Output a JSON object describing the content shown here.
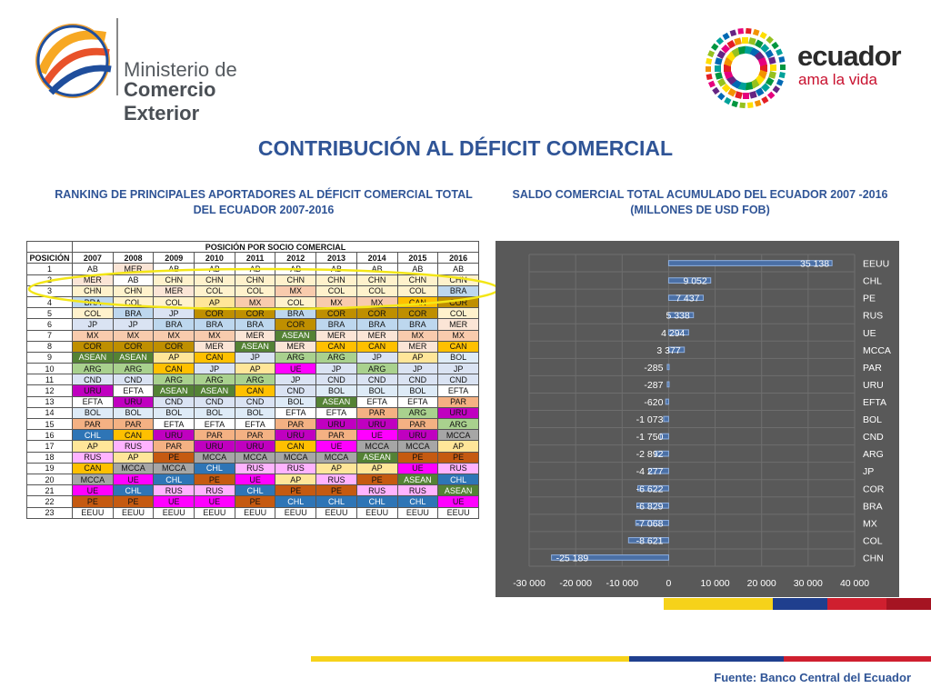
{
  "logos": {
    "left": {
      "line1": "Ministerio de",
      "line2": "Comercio Exterior"
    },
    "right": {
      "word": "ecuador",
      "tagline": "ama la vida"
    }
  },
  "title": "CONTRIBUCIÓN AL DÉFICIT COMERCIAL",
  "left_subtitle": "RANKING DE PRINCIPALES APORTADORES AL DÉFICIT COMERCIAL TOTAL DEL ECUADOR 2007-2016",
  "right_subtitle": "SALDO COMERCIAL TOTAL ACUMULADO DEL ECUADOR 2007 -2016 (MILLONES DE USD FOB)",
  "source": "Fuente: Banco Central del Ecuador",
  "table": {
    "caption": "POSICIÓN POR SOCIO COMERCIAL",
    "position_header": "POSICIÓN",
    "years": [
      "2007",
      "2008",
      "2009",
      "2010",
      "2011",
      "2012",
      "2013",
      "2014",
      "2015",
      "2016"
    ],
    "rows": [
      [
        "AB",
        "MER",
        "AB",
        "AB",
        "AB",
        "AB",
        "AB",
        "AB",
        "AB",
        "AB"
      ],
      [
        "MER",
        "AB",
        "CHN",
        "CHN",
        "CHN",
        "CHN",
        "CHN",
        "CHN",
        "CHN",
        "CHN"
      ],
      [
        "CHN",
        "CHN",
        "MER",
        "COL",
        "COL",
        "MX",
        "COL",
        "COL",
        "COL",
        "BRA"
      ],
      [
        "BRA",
        "COL",
        "COL",
        "AP",
        "MX",
        "COL",
        "MX",
        "MX",
        "CAN",
        "COR"
      ],
      [
        "COL",
        "BRA",
        "JP",
        "COR",
        "COR",
        "BRA",
        "COR",
        "COR",
        "COR",
        "COL"
      ],
      [
        "JP",
        "JP",
        "BRA",
        "BRA",
        "BRA",
        "COR",
        "BRA",
        "BRA",
        "BRA",
        "MER"
      ],
      [
        "MX",
        "MX",
        "MX",
        "MX",
        "MER",
        "ASEAN",
        "MER",
        "MER",
        "MX",
        "MX"
      ],
      [
        "COR",
        "COR",
        "COR",
        "MER",
        "ASEAN",
        "MER",
        "CAN",
        "CAN",
        "MER",
        "CAN"
      ],
      [
        "ASEAN",
        "ASEAN",
        "AP",
        "CAN",
        "JP",
        "ARG",
        "ARG",
        "JP",
        "AP",
        "BOL"
      ],
      [
        "ARG",
        "ARG",
        "CAN",
        "JP",
        "AP",
        "UE",
        "JP",
        "ARG",
        "JP",
        "JP"
      ],
      [
        "CND",
        "CND",
        "ARG",
        "ARG",
        "ARG",
        "JP",
        "CND",
        "CND",
        "CND",
        "CND"
      ],
      [
        "URU",
        "EFTA",
        "ASEAN",
        "ASEAN",
        "CAN",
        "CND",
        "BOL",
        "BOL",
        "BOL",
        "EFTA"
      ],
      [
        "EFTA",
        "URU",
        "CND",
        "CND",
        "CND",
        "BOL",
        "ASEAN",
        "EFTA",
        "EFTA",
        "PAR"
      ],
      [
        "BOL",
        "BOL",
        "BOL",
        "BOL",
        "BOL",
        "EFTA",
        "EFTA",
        "PAR",
        "ARG",
        "URU"
      ],
      [
        "PAR",
        "PAR",
        "EFTA",
        "EFTA",
        "EFTA",
        "PAR",
        "URU",
        "URU",
        "PAR",
        "ARG"
      ],
      [
        "CHL",
        "CAN",
        "URU",
        "PAR",
        "PAR",
        "URU",
        "PAR",
        "UE",
        "URU",
        "MCCA"
      ],
      [
        "AP",
        "RUS",
        "PAR",
        "URU",
        "URU",
        "CAN",
        "UE",
        "MCCA",
        "MCCA",
        "AP"
      ],
      [
        "RUS",
        "AP",
        "PE",
        "MCCA",
        "MCCA",
        "MCCA",
        "MCCA",
        "ASEAN",
        "PE",
        "PE"
      ],
      [
        "CAN",
        "MCCA",
        "MCCA",
        "CHL",
        "RUS",
        "RUS",
        "AP",
        "AP",
        "UE",
        "RUS"
      ],
      [
        "MCCA",
        "UE",
        "CHL",
        "PE",
        "UE",
        "AP",
        "RUS",
        "PE",
        "ASEAN",
        "CHL"
      ],
      [
        "UE",
        "CHL",
        "RUS",
        "RUS",
        "CHL",
        "PE",
        "PE",
        "RUS",
        "RUS",
        "ASEAN"
      ],
      [
        "PE",
        "PE",
        "UE",
        "UE",
        "PE",
        "CHL",
        "CHL",
        "CHL",
        "CHL",
        "UE"
      ],
      [
        "EEUU",
        "EEUU",
        "EEUU",
        "EEUU",
        "EEUU",
        "EEUU",
        "EEUU",
        "EEUU",
        "EEUU",
        "EEUU"
      ]
    ],
    "colors": {
      "AB": "#ffffff",
      "MER": "#fbe5d6",
      "CHN": "#fff2cc",
      "COL": "#fff2cc",
      "BRA": "#bdd7ee",
      "JP": "#dae3f3",
      "MX": "#f8cbad",
      "COR": "#bf8f00",
      "ASEAN": "#548235",
      "ARG": "#a9d18e",
      "CND": "#dae3f3",
      "URU": "#c000c0",
      "EFTA": "#ffffff",
      "BOL": "#deebf7",
      "PAR": "#f4b183",
      "CHL": "#2e75b6",
      "AP": "#ffe699",
      "RUS": "#ffb3ff",
      "CAN": "#ffc000",
      "MCCA": "#a6a6a6",
      "UE": "#ff00ff",
      "PE": "#c55a11",
      "EEUU": "#ffffff"
    }
  },
  "chart_data": {
    "type": "bar",
    "orientation": "horizontal",
    "categories": [
      "EEUU",
      "CHL",
      "PE",
      "RUS",
      "UE",
      "MCCA",
      "PAR",
      "URU",
      "EFTA",
      "BOL",
      "CND",
      "ARG",
      "JP",
      "COR",
      "BRA",
      "MX",
      "COL",
      "CHN"
    ],
    "values": [
      35138,
      9052,
      7437,
      5338,
      4294,
      3377,
      -285,
      -287,
      -620,
      -1073,
      -1750,
      -2892,
      -4277,
      -6622,
      -6829,
      -7068,
      -8621,
      -25189
    ],
    "labels": [
      "35 138",
      "9 052",
      "7 437",
      "5 338",
      "4 294",
      "3 377",
      "-285",
      "-287",
      "-620",
      "-1 073",
      "-1 750",
      "-2 892",
      "-4 277",
      "-6 622",
      "-6 829",
      "-7 068",
      "-8 621",
      "-25 189"
    ],
    "xlim": [
      -30000,
      40000
    ],
    "xticks": [
      -30000,
      -20000,
      -10000,
      0,
      10000,
      20000,
      30000,
      40000
    ],
    "xtick_labels": [
      "-30 000",
      "-20 000",
      "-10 000",
      "0",
      "10 000",
      "20 000",
      "30 000",
      "40 000"
    ],
    "grid": true,
    "colors": {
      "background": "#595959",
      "bar": "#4a6fa5",
      "text": "#ffffff"
    }
  }
}
